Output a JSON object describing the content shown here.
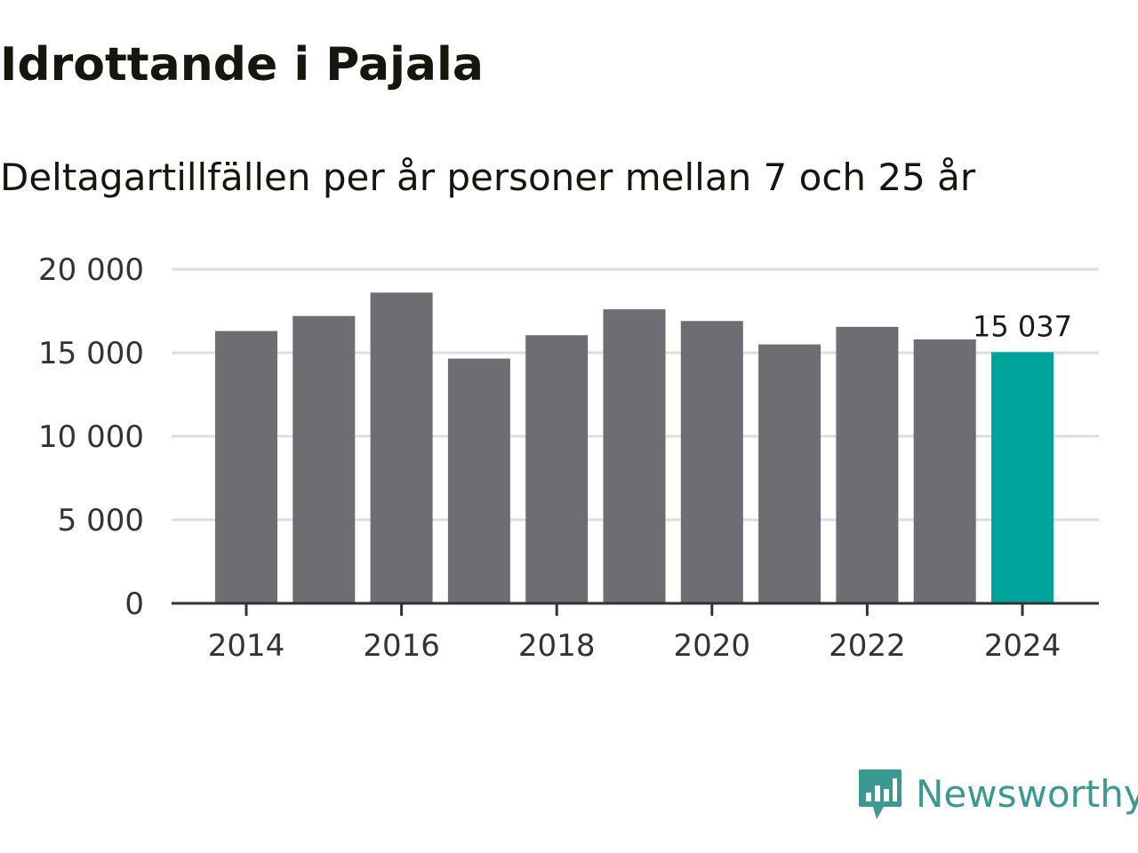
{
  "title": "Idrottande i Pajala",
  "subtitle": "Deltagartillfällen per år personer mellan 7 och 25 år",
  "brand": {
    "name": "Newsworthy",
    "color": "#3a9a92"
  },
  "colors": {
    "bar": "#6e6d73",
    "highlight": "#00a49a",
    "grid": "#dddddd",
    "axis": "#333333"
  },
  "chart_data": {
    "type": "bar",
    "title": "Idrottande i Pajala",
    "subtitle": "Deltagartillfällen per år personer mellan 7 och 25 år",
    "xlabel": "",
    "ylabel": "",
    "categories": [
      "2014",
      "2015",
      "2016",
      "2017",
      "2018",
      "2019",
      "2020",
      "2021",
      "2022",
      "2023",
      "2024"
    ],
    "values": [
      16300,
      17200,
      18600,
      14650,
      16050,
      17600,
      16900,
      15500,
      16550,
      15800,
      15037
    ],
    "highlight_index": 10,
    "highlight_label": "15 037",
    "ylim": [
      0,
      20000
    ],
    "yticks": [
      0,
      5000,
      10000,
      15000,
      20000
    ],
    "ytick_labels": [
      "0",
      "5 000",
      "10 000",
      "15 000",
      "20 000"
    ],
    "xtick_labels": [
      "2014",
      "2016",
      "2018",
      "2020",
      "2022",
      "2024"
    ],
    "grid": true
  }
}
